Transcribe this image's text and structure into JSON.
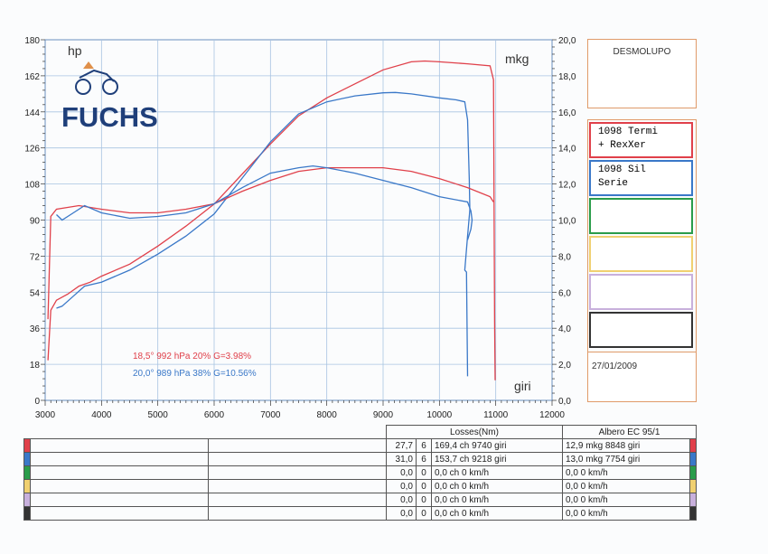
{
  "chart_data": {
    "type": "line",
    "xlabel": "giri",
    "ylabel_left": "hp",
    "ylabel_right": "mkg",
    "xlim": [
      3000,
      12000
    ],
    "ylim_left": [
      0,
      180
    ],
    "ylim_right": [
      0,
      20
    ],
    "x_ticks": [
      "3000",
      "4000",
      "5000",
      "6000",
      "7000",
      "8000",
      "9000",
      "10000",
      "11000",
      "12000"
    ],
    "y_ticks_left": [
      "0",
      "18",
      "36",
      "54",
      "72",
      "90",
      "108",
      "126",
      "144",
      "162",
      "180"
    ],
    "y_ticks_right": [
      "0,0",
      "2,0",
      "4,0",
      "6,0",
      "8,0",
      "10,0",
      "12,0",
      "14,0",
      "16,0",
      "18,0",
      "20,0"
    ],
    "grid": true,
    "series": [
      {
        "name": "1098 Termi + RexXer",
        "quantity": "hp",
        "color": "#e0404a",
        "x": [
          3050,
          3100,
          3200,
          3400,
          3600,
          3800,
          4000,
          4500,
          5000,
          5500,
          6000,
          6500,
          7000,
          7500,
          8000,
          8500,
          9000,
          9500,
          9740,
          10000,
          10500,
          10900,
          10960,
          10970,
          10980,
          10990
        ],
        "y": [
          20,
          45,
          50,
          53,
          57,
          59,
          62,
          68,
          77,
          87,
          98,
          113,
          128,
          142,
          151,
          158,
          165,
          169,
          169.4,
          169,
          168,
          167,
          160,
          100,
          40,
          10
        ]
      },
      {
        "name": "1098 Sil Serie",
        "quantity": "hp",
        "color": "#3a78c8",
        "x": [
          3200,
          3300,
          3500,
          3700,
          4000,
          4500,
          5000,
          5500,
          6000,
          6500,
          7000,
          7500,
          8000,
          8500,
          9000,
          9218,
          9500,
          10000,
          10300,
          10450,
          10500,
          10530,
          10540,
          10500,
          10450,
          10480,
          10500
        ],
        "y": [
          46,
          47,
          52,
          57,
          59,
          65,
          73,
          82,
          93,
          111,
          129,
          143,
          149,
          152,
          153.5,
          153.7,
          153,
          151,
          150,
          149,
          140,
          110,
          95,
          82,
          65,
          64,
          12
        ]
      },
      {
        "name": "1098 Termi + RexXer",
        "quantity": "mkg",
        "color": "#e0404a",
        "x": [
          3050,
          3100,
          3200,
          3400,
          3600,
          3800,
          4000,
          4500,
          5000,
          5500,
          6000,
          6500,
          7000,
          7500,
          8000,
          8848,
          9000,
          9500,
          10000,
          10500,
          10900,
          10960
        ],
        "y": [
          4.5,
          10.2,
          10.6,
          10.7,
          10.8,
          10.7,
          10.6,
          10.4,
          10.4,
          10.6,
          10.9,
          11.6,
          12.2,
          12.7,
          12.9,
          12.9,
          12.9,
          12.7,
          12.3,
          11.8,
          11.3,
          11.0
        ]
      },
      {
        "name": "1098 Sil Serie",
        "quantity": "mkg",
        "color": "#3a78c8",
        "x": [
          3200,
          3300,
          3500,
          3700,
          4000,
          4500,
          5000,
          5500,
          6000,
          6500,
          7000,
          7500,
          7754,
          8000,
          8500,
          9000,
          9500,
          10000,
          10500,
          10560,
          10580,
          10560,
          10500
        ],
        "y": [
          10.3,
          10.0,
          10.4,
          10.8,
          10.4,
          10.1,
          10.2,
          10.4,
          10.9,
          11.8,
          12.6,
          12.9,
          13.0,
          12.9,
          12.6,
          12.2,
          11.8,
          11.3,
          11.0,
          10.5,
          10.0,
          9.5,
          8.9
        ]
      }
    ]
  },
  "header": {
    "hp_unit": "hp",
    "mkg_unit": "mkg",
    "rpm_label": "giri",
    "brand_logo": "FUCHS"
  },
  "conditions": [
    {
      "text": "18,5°  992 hPa  20%    G=3.98%",
      "color": "#e0404a"
    },
    {
      "text": "20,0°  989 hPa  38%    G=10.56%",
      "color": "#3a78c8"
    }
  ],
  "side": {
    "title": "DESMOLUPO",
    "legend": [
      {
        "line1": "1098 Termi",
        "line2": "+ RexXer",
        "color": "#e0404a"
      },
      {
        "line1": "1098 Sil",
        "line2": "Serie",
        "color": "#3a78c8"
      },
      {
        "line1": "",
        "line2": "",
        "color": "#2a9c4a"
      },
      {
        "line1": "",
        "line2": "",
        "color": "#f0d070"
      },
      {
        "line1": "",
        "line2": "",
        "color": "#c8b0dc"
      },
      {
        "line1": "",
        "line2": "",
        "color": "#333333"
      }
    ],
    "date": "27/01/2009"
  },
  "table": {
    "losses_header": "Losses(Nm)",
    "shaft_header": "Albero EC 95/1",
    "rows": [
      {
        "color": "#e0404a",
        "loss": "27,7",
        "gear": "6",
        "power": "169,4 ch 9740 giri",
        "torque": "12,9 mkg 8848 giri"
      },
      {
        "color": "#3a78c8",
        "loss": "31,0",
        "gear": "6",
        "power": "153,7 ch 9218 giri",
        "torque": "13,0 mkg 7754 giri"
      },
      {
        "color": "#2a9c4a",
        "loss": "0,0",
        "gear": "0",
        "power": "0,0 ch 0 km/h",
        "torque": "0,0   0 km/h"
      },
      {
        "color": "#f0d070",
        "loss": "0,0",
        "gear": "0",
        "power": "0,0 ch 0 km/h",
        "torque": "0,0   0 km/h"
      },
      {
        "color": "#c8b0dc",
        "loss": "0,0",
        "gear": "0",
        "power": "0,0 ch 0 km/h",
        "torque": "0,0   0 km/h"
      },
      {
        "color": "#333333",
        "loss": "0,0",
        "gear": "0",
        "power": "0,0 ch 0 km/h",
        "torque": "0,0   0 km/h"
      }
    ]
  }
}
